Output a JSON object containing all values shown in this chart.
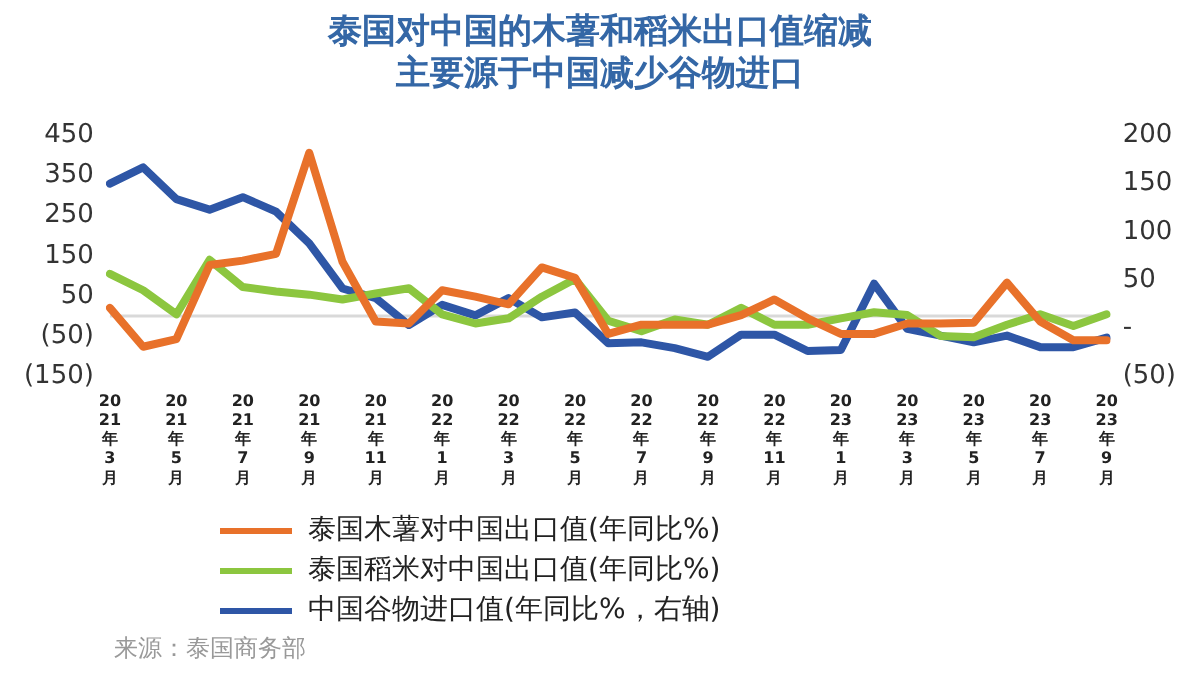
{
  "chart_data": {
    "type": "line",
    "title": "泰国对中国的木薯和稻米出口值缩减主要源于中国减少谷物进口",
    "categories": [
      "2021年3月",
      null,
      "2021年5月",
      null,
      "2021年7月",
      null,
      "2021年9月",
      null,
      "2021年11月",
      null,
      "2022年1月",
      null,
      "2022年3月",
      null,
      "2022年5月",
      null,
      "2022年7月",
      null,
      "2022年9月",
      null,
      "2022年11月",
      null,
      "2023年1月",
      null,
      "2023年3月",
      null,
      "2023年5月",
      null,
      "2023年7月",
      null,
      "2023年9月"
    ],
    "series": [
      {
        "name": "泰国木薯对中国出口值(年同比%)",
        "color": "#e8712a",
        "values": [
          20,
          -77,
          -58,
          127,
          138,
          155,
          407,
          135,
          -14,
          -19,
          64,
          48,
          29,
          121,
          95,
          -45,
          -22,
          -22,
          -22,
          2,
          41,
          -6,
          -45,
          -45,
          -19,
          -19,
          -17,
          83,
          -14,
          -61,
          -61
        ]
      },
      {
        "name": "泰国稻米对中国出口值(年同比%)",
        "color": "#8cc63f",
        "values": [
          105,
          64,
          4,
          140,
          72,
          61,
          53,
          41,
          56,
          69,
          4,
          -19,
          -6,
          48,
          92,
          -12,
          -38,
          -9,
          -22,
          20,
          -22,
          -22,
          -6,
          9,
          2,
          -50,
          -53,
          -22,
          4,
          -25,
          4
        ]
      },
      {
        "name": "中国谷物进口值(年同比%，右轴)",
        "color": "#2e56a6",
        "axis": "y2",
        "values": [
          150,
          167,
          134,
          123,
          136,
          121,
          88,
          41,
          31,
          3,
          24,
          13,
          31,
          11,
          16,
          -16,
          -15,
          -21,
          -30,
          -7,
          -7,
          -24,
          -23,
          46,
          -1,
          -8,
          -15,
          -8,
          -20,
          -20,
          -10
        ]
      }
    ],
    "ylim": [
      -150,
      450
    ],
    "yticks": [
      450,
      350,
      250,
      150,
      50,
      {
        "value": -50,
        "label": "(50)"
      },
      {
        "value": -150,
        "label": "(150)"
      }
    ],
    "y2lim": [
      -50,
      200
    ],
    "y2ticks": [
      200,
      150,
      100,
      50,
      {
        "value": 0,
        "label": "-"
      },
      {
        "value": -50,
        "label": "(50)"
      }
    ],
    "ref_lines": [
      {
        "axis": "y",
        "value": 0,
        "color": "#d9d9d9"
      }
    ],
    "grid": false,
    "legend": "bottom",
    "marker": "none",
    "line_style": "solid",
    "annotations": [
      "来源：泰国商务部"
    ]
  }
}
